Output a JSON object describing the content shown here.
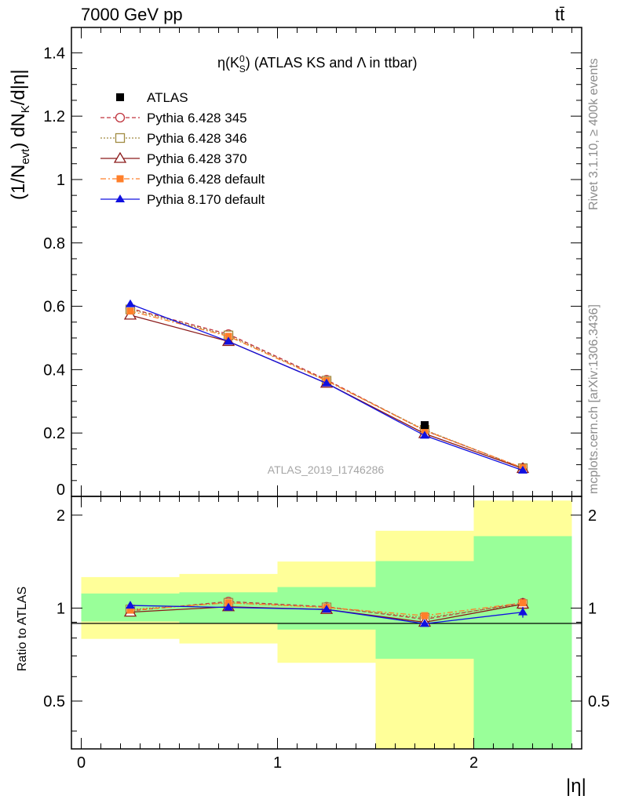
{
  "header": {
    "left": "7000 GeV pp",
    "right": "tt̄"
  },
  "side_labels": {
    "rivet": "Rivet 3.1.10, ≥ 400k events",
    "mcplots": "mcplots.cern.ch [arXiv:1306.3436]"
  },
  "watermark": "ATLAS_2019_I1746286",
  "colors": {
    "band_inner": "#99ff99",
    "band_outer": "#ffff99",
    "atlas": "#000000",
    "p345": "#c0353f",
    "p346": "#a08a40",
    "p370": "#8b1a1a",
    "p6def": "#ff7f2a",
    "p8def": "#1010e0"
  },
  "chart_data": [
    {
      "type": "line",
      "panel": "main",
      "title": "η(K⁰S) (ATLAS KS and Λ in ttbar)",
      "title_parts": {
        "eta": "η(K",
        "sup": "0",
        "sub": "S",
        "rest": ") (ATLAS KS and Λ in ttbar)"
      },
      "ylabel": "(1/Nevt) dNK/d|η|",
      "ylabel_parts": {
        "a": "(1/N",
        "sub1": "evt",
        "b": ") dN",
        "sub2": "K",
        "c": "/d|η|"
      },
      "xlim": [
        -0.05,
        2.55
      ],
      "ylim": [
        0,
        1.48
      ],
      "yticks": [
        {
          "v": 0,
          "label": "0"
        },
        {
          "v": 0.2,
          "label": "0.2"
        },
        {
          "v": 0.4,
          "label": "0.4"
        },
        {
          "v": 0.6,
          "label": "0.6"
        },
        {
          "v": 0.8,
          "label": "0.8"
        },
        {
          "v": 1.0,
          "label": "1"
        },
        {
          "v": 1.2,
          "label": "1.2"
        },
        {
          "v": 1.4,
          "label": "1.4"
        }
      ],
      "legend_position": "top-left",
      "x": [
        0.25,
        0.75,
        1.25,
        1.75,
        2.25
      ],
      "series": [
        {
          "id": "atlas",
          "name": "ATLAS",
          "values": [
            null,
            null,
            null,
            0.225,
            null
          ]
        },
        {
          "id": "p345",
          "name": "Pythia 6.428 345",
          "values": [
            0.593,
            0.512,
            0.368,
            0.208,
            0.09
          ]
        },
        {
          "id": "p346",
          "name": "Pythia 6.428 346",
          "values": [
            0.59,
            0.508,
            0.365,
            0.21,
            0.089
          ]
        },
        {
          "id": "p370",
          "name": "Pythia 6.428 370",
          "values": [
            0.572,
            0.489,
            0.357,
            0.198,
            0.088
          ]
        },
        {
          "id": "p6def",
          "name": "Pythia 6.428 default",
          "values": [
            0.585,
            0.505,
            0.365,
            0.208,
            0.09
          ]
        },
        {
          "id": "p8def",
          "name": "Pythia 8.170 default",
          "values": [
            0.607,
            0.489,
            0.357,
            0.192,
            0.082
          ]
        }
      ]
    },
    {
      "type": "line",
      "panel": "ratio",
      "ylabel": "Ratio to ATLAS",
      "xlabel": "|η|",
      "xlim": [
        -0.05,
        2.55
      ],
      "ylim": [
        0.35,
        2.3
      ],
      "log_y": true,
      "yticks": [
        {
          "v": 0.5,
          "label": "0.5"
        },
        {
          "v": 1,
          "label": "1"
        },
        {
          "v": 2,
          "label": "2"
        }
      ],
      "xticks": [
        {
          "v": 0,
          "label": "0"
        },
        {
          "v": 1,
          "label": "1"
        },
        {
          "v": 2,
          "label": "2"
        }
      ],
      "bins": [
        {
          "lo": 0.0,
          "hi": 0.5,
          "inner": [
            0.905,
            1.115
          ],
          "outer": [
            0.795,
            1.26
          ]
        },
        {
          "lo": 0.5,
          "hi": 1.0,
          "inner": [
            0.893,
            1.125
          ],
          "outer": [
            0.768,
            1.29
          ]
        },
        {
          "lo": 1.0,
          "hi": 1.5,
          "inner": [
            0.852,
            1.17
          ],
          "outer": [
            0.665,
            1.415
          ]
        },
        {
          "lo": 1.5,
          "hi": 2.0,
          "inner": [
            0.685,
            1.42
          ],
          "outer": [
            0.35,
            1.78
          ]
        },
        {
          "lo": 2.0,
          "hi": 2.5,
          "inner": [
            0.35,
            1.71
          ],
          "outer": [
            0.35,
            2.23
          ]
        }
      ],
      "x": [
        0.25,
        0.75,
        1.25,
        1.75,
        2.25
      ],
      "series": [
        {
          "id": "p345",
          "name": "Pythia 6.428 345",
          "values": [
            0.98,
            1.05,
            1.01,
            0.92,
            1.04
          ]
        },
        {
          "id": "p346",
          "name": "Pythia 6.428 346",
          "values": [
            0.99,
            1.04,
            1.005,
            0.93,
            1.03
          ]
        },
        {
          "id": "p370",
          "name": "Pythia 6.428 370",
          "values": [
            0.97,
            1.01,
            0.99,
            0.9,
            1.03
          ]
        },
        {
          "id": "p6def",
          "name": "Pythia 6.428 default",
          "values": [
            0.985,
            1.04,
            1.005,
            0.945,
            1.04
          ]
        },
        {
          "id": "p8def",
          "name": "Pythia 8.170 default",
          "values": [
            1.02,
            1.005,
            0.99,
            0.89,
            0.97
          ]
        }
      ]
    }
  ]
}
